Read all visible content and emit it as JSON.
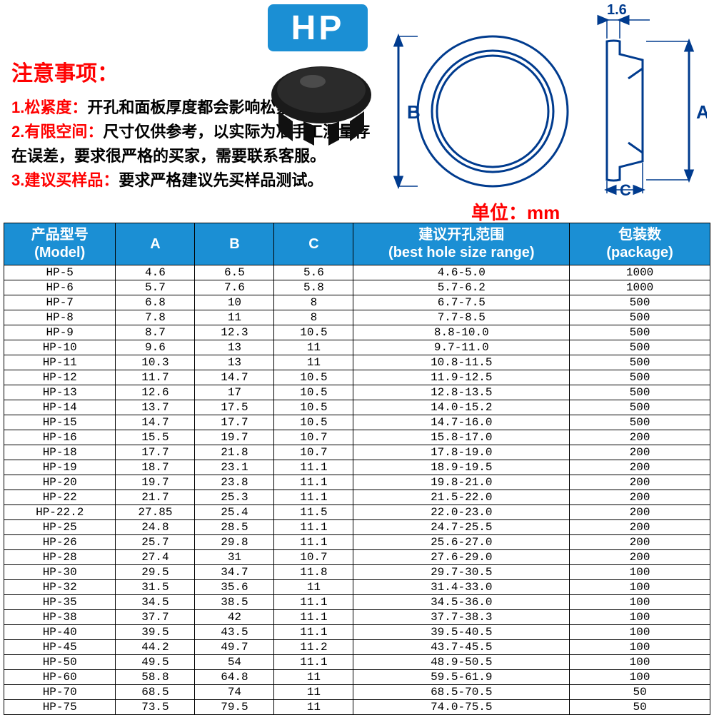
{
  "badge": "HP",
  "notes": {
    "title": "注意事项：",
    "line1_red": "1.松紧度：",
    "line1_black": "开孔和面板厚度都会影响松紧度。",
    "line2_red": "2.有限空间：",
    "line2_black": "尺寸仅供参考，以实际为准手工测量存在误差，要求很严格的买家，需要联系客服。",
    "line3_red": "3.建议买样品：",
    "line3_black": "要求严格建议先买样品测试。"
  },
  "unit_prefix": "单位：",
  "unit_value": "mm",
  "diagram": {
    "top_dim": "1.6",
    "label_A": "A",
    "label_B": "B",
    "label_C": "C",
    "stroke": "#003b8e"
  },
  "table": {
    "header_bg": "#1b8fd4",
    "columns": [
      {
        "zh": "产品型号",
        "en": "(Model)"
      },
      {
        "zh": "A",
        "en": ""
      },
      {
        "zh": "B",
        "en": ""
      },
      {
        "zh": "C",
        "en": ""
      },
      {
        "zh": "建议开孔范围",
        "en": "(best hole size range)"
      },
      {
        "zh": "包装数",
        "en": "(package)"
      }
    ],
    "rows": [
      [
        "HP-5",
        "4.6",
        "6.5",
        "5.6",
        "4.6-5.0",
        "1000"
      ],
      [
        "HP-6",
        "5.7",
        "7.6",
        "5.8",
        "5.7-6.2",
        "1000"
      ],
      [
        "HP-7",
        "6.8",
        "10",
        "8",
        "6.7-7.5",
        "500"
      ],
      [
        "HP-8",
        "7.8",
        "11",
        "8",
        "7.7-8.5",
        "500"
      ],
      [
        "HP-9",
        "8.7",
        "12.3",
        "10.5",
        "8.8-10.0",
        "500"
      ],
      [
        "HP-10",
        "9.6",
        "13",
        "11",
        "9.7-11.0",
        "500"
      ],
      [
        "HP-11",
        "10.3",
        "13",
        "11",
        "10.8-11.5",
        "500"
      ],
      [
        "HP-12",
        "11.7",
        "14.7",
        "10.5",
        "11.9-12.5",
        "500"
      ],
      [
        "HP-13",
        "12.6",
        "17",
        "10.5",
        "12.8-13.5",
        "500"
      ],
      [
        "HP-14",
        "13.7",
        "17.5",
        "10.5",
        "14.0-15.2",
        "500"
      ],
      [
        "HP-15",
        "14.7",
        "17.7",
        "10.5",
        "14.7-16.0",
        "500"
      ],
      [
        "HP-16",
        "15.5",
        "19.7",
        "10.7",
        "15.8-17.0",
        "200"
      ],
      [
        "HP-18",
        "17.7",
        "21.8",
        "10.7",
        "17.8-19.0",
        "200"
      ],
      [
        "HP-19",
        "18.7",
        "23.1",
        "11.1",
        "18.9-19.5",
        "200"
      ],
      [
        "HP-20",
        "19.7",
        "23.8",
        "11.1",
        "19.8-21.0",
        "200"
      ],
      [
        "HP-22",
        "21.7",
        "25.3",
        "11.1",
        "21.5-22.0",
        "200"
      ],
      [
        "HP-22.2",
        "27.85",
        "25.4",
        "11.5",
        "22.0-23.0",
        "200"
      ],
      [
        "HP-25",
        "24.8",
        "28.5",
        "11.1",
        "24.7-25.5",
        "200"
      ],
      [
        "HP-26",
        "25.7",
        "29.8",
        "11.1",
        "25.6-27.0",
        "200"
      ],
      [
        "HP-28",
        "27.4",
        "31",
        "10.7",
        "27.6-29.0",
        "200"
      ],
      [
        "HP-30",
        "29.5",
        "34.7",
        "11.8",
        "29.7-30.5",
        "100"
      ],
      [
        "HP-32",
        "31.5",
        "35.6",
        "11",
        "31.4-33.0",
        "100"
      ],
      [
        "HP-35",
        "34.5",
        "38.5",
        "11.1",
        "34.5-36.0",
        "100"
      ],
      [
        "HP-38",
        "37.7",
        "42",
        "11.1",
        "37.7-38.3",
        "100"
      ],
      [
        "HP-40",
        "39.5",
        "43.5",
        "11.1",
        "39.5-40.5",
        "100"
      ],
      [
        "HP-45",
        "44.2",
        "49.7",
        "11.2",
        "43.7-45.5",
        "100"
      ],
      [
        "HP-50",
        "49.5",
        "54",
        "11.1",
        "48.9-50.5",
        "100"
      ],
      [
        "HP-60",
        "58.8",
        "64.8",
        "11",
        "59.5-61.9",
        "100"
      ],
      [
        "HP-70",
        "68.5",
        "74",
        "11",
        "68.5-70.5",
        "50"
      ],
      [
        "HP-75",
        "73.5",
        "79.5",
        "11",
        "74.0-75.5",
        "50"
      ]
    ]
  }
}
